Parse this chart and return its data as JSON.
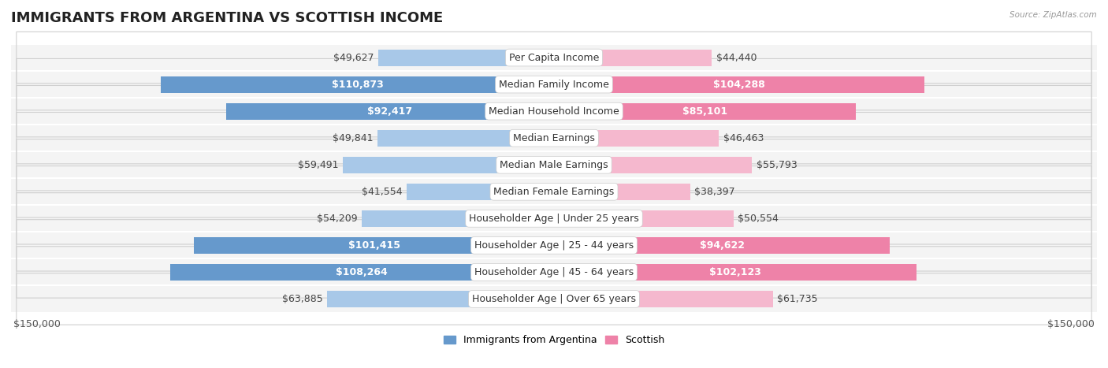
{
  "title": "IMMIGRANTS FROM ARGENTINA VS SCOTTISH INCOME",
  "source": "Source: ZipAtlas.com",
  "categories": [
    "Per Capita Income",
    "Median Family Income",
    "Median Household Income",
    "Median Earnings",
    "Median Male Earnings",
    "Median Female Earnings",
    "Householder Age | Under 25 years",
    "Householder Age | 25 - 44 years",
    "Householder Age | 45 - 64 years",
    "Householder Age | Over 65 years"
  ],
  "argentina_values": [
    49627,
    110873,
    92417,
    49841,
    59491,
    41554,
    54209,
    101415,
    108264,
    63885
  ],
  "scottish_values": [
    44440,
    104288,
    85101,
    46463,
    55793,
    38397,
    50554,
    94622,
    102123,
    61735
  ],
  "argentina_labels": [
    "$49,627",
    "$110,873",
    "$92,417",
    "$49,841",
    "$59,491",
    "$41,554",
    "$54,209",
    "$101,415",
    "$108,264",
    "$63,885"
  ],
  "scottish_labels": [
    "$44,440",
    "$104,288",
    "$85,101",
    "$46,463",
    "$55,793",
    "$38,397",
    "$50,554",
    "$94,622",
    "$102,123",
    "$61,735"
  ],
  "argentina_color_light": "#a8c8e8",
  "argentina_color_solid": "#6699cc",
  "scottish_color_light": "#f5b8ce",
  "scottish_color_solid": "#ee82a8",
  "max_value": 150000,
  "bg_color": "#ffffff",
  "label_fontsize": 9,
  "title_fontsize": 13,
  "axis_label_fontsize": 9,
  "arg_label_inside_threshold": 65000,
  "sco_label_inside_threshold": 65000
}
